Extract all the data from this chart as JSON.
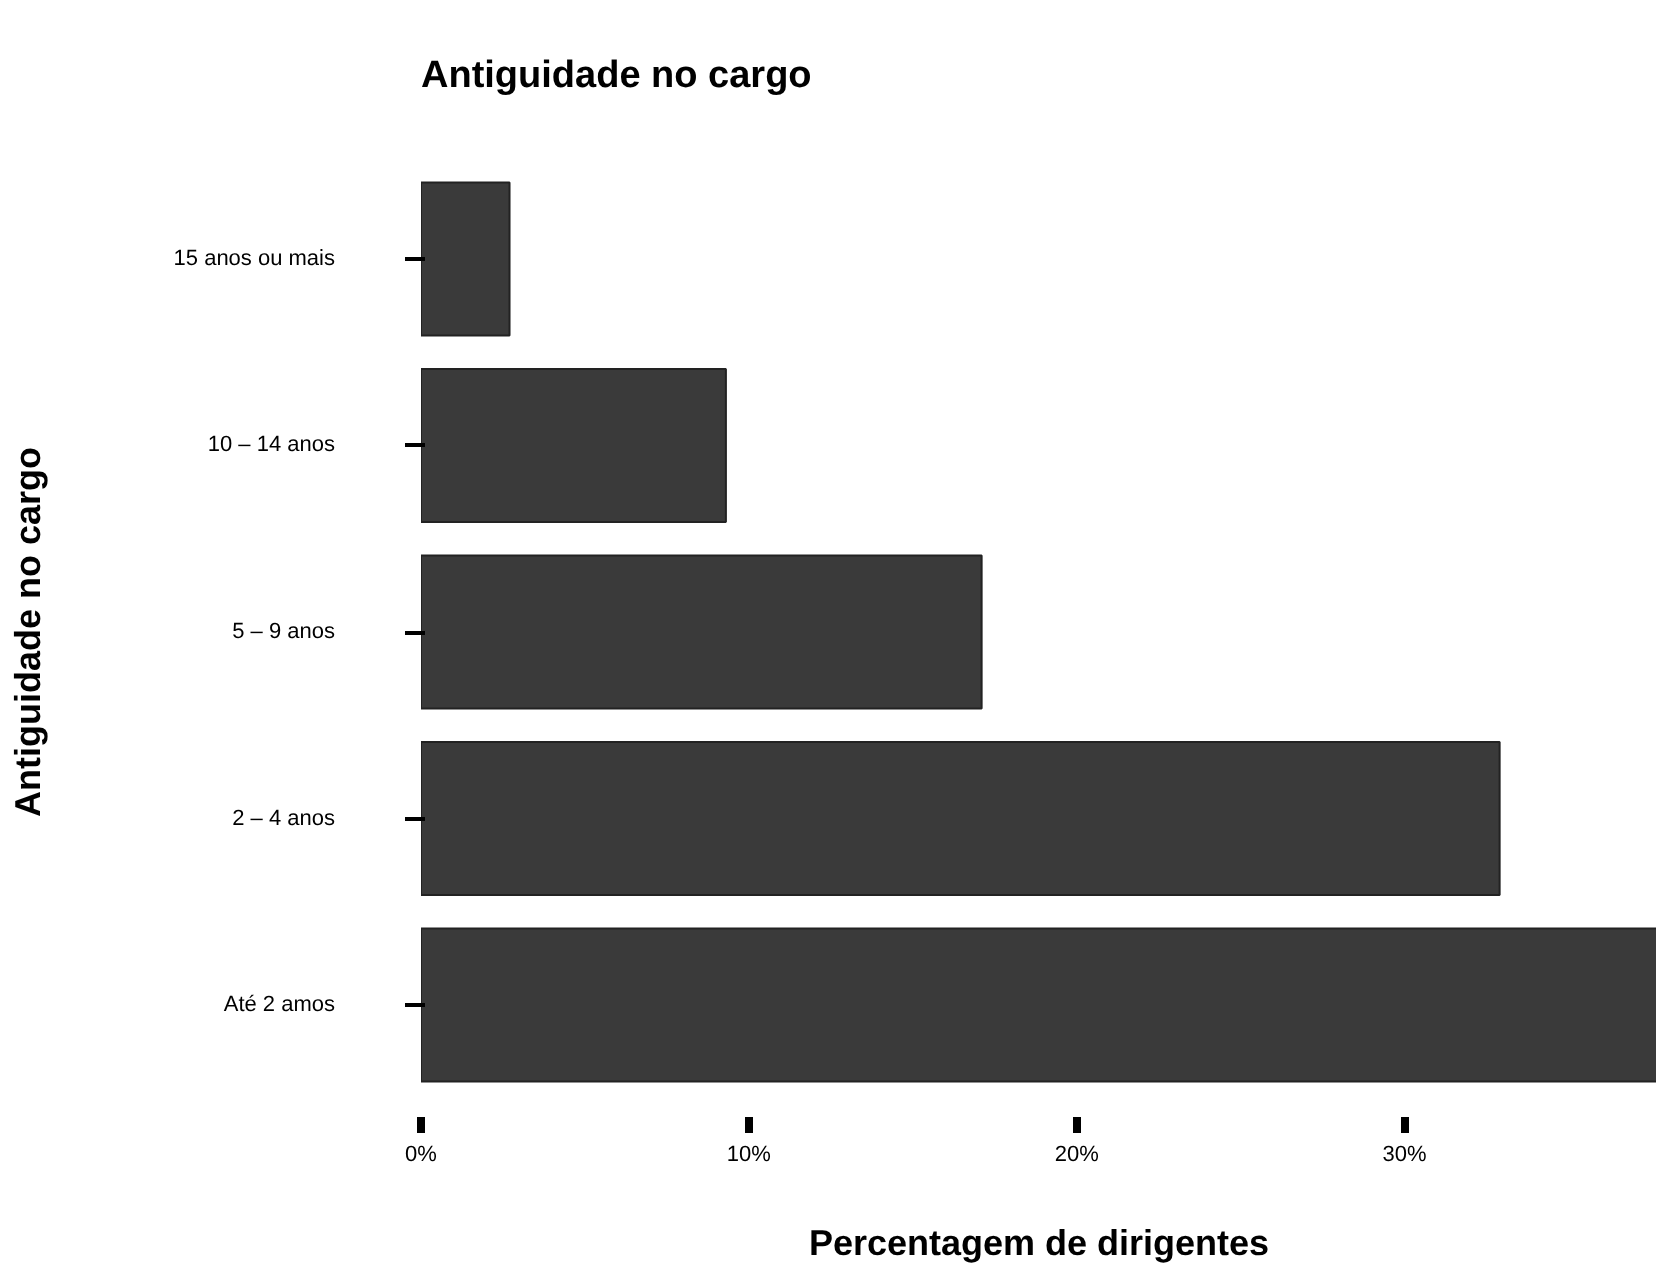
{
  "chart_data": {
    "type": "bar",
    "orientation": "horizontal",
    "title": "Antiguidade no cargo",
    "xlabel": "Percentagem de dirigentes",
    "ylabel": "Antiguidade no cargo",
    "categories": [
      "15 anos ou mais",
      "10 – 14 anos",
      "5 – 9 anos",
      "2 – 4 anos",
      "Até 2 amos"
    ],
    "values": [
      2.7,
      9.3,
      17.1,
      32.9,
      37.7
    ],
    "color": "#3a3a3a",
    "xlim": [
      0,
      37.7
    ],
    "xticks": [
      {
        "value": 0,
        "label": "0%"
      },
      {
        "value": 10,
        "label": "10%"
      },
      {
        "value": 20,
        "label": "20%"
      },
      {
        "value": 30,
        "label": "30%"
      }
    ],
    "grid": false
  }
}
